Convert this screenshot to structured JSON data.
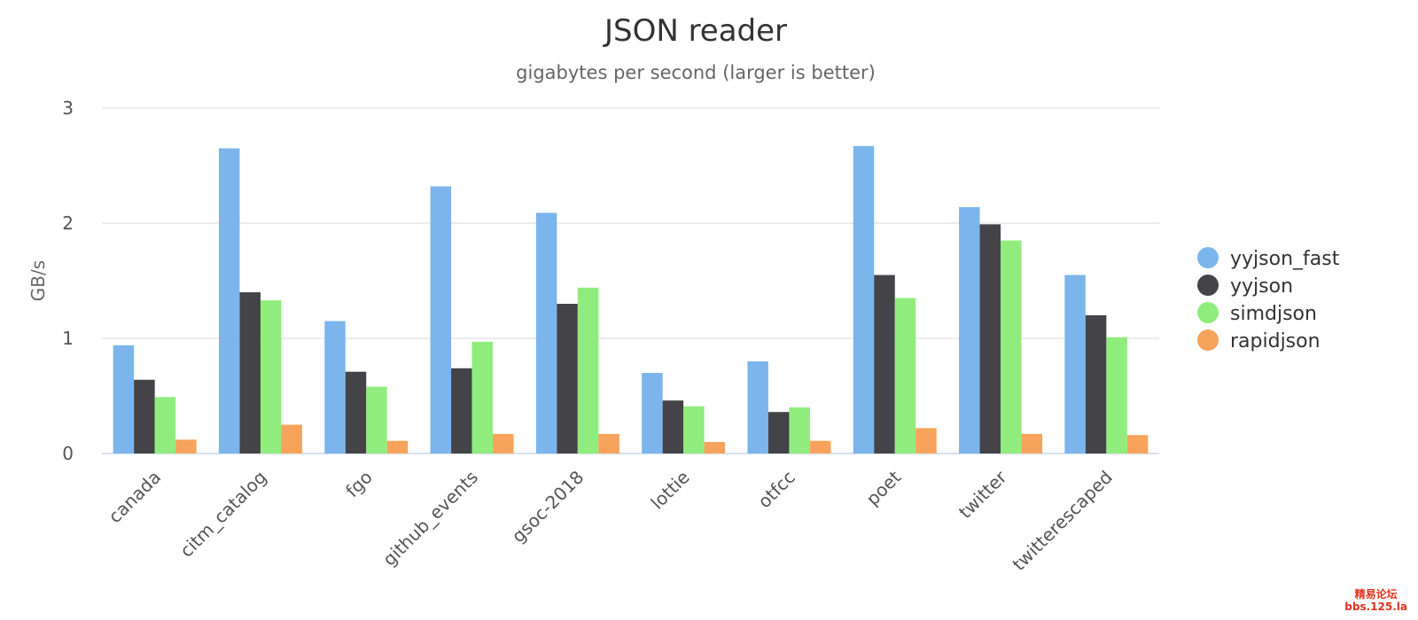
{
  "chart_data": {
    "type": "bar",
    "title": "JSON reader",
    "subtitle": "gigabytes per second (larger is better)",
    "ylabel": "GB/s",
    "xlabel": "",
    "ylim": [
      0,
      3
    ],
    "yticks": [
      0,
      1,
      2,
      3
    ],
    "grid": true,
    "legend_position": "right",
    "categories": [
      "canada",
      "citm_catalog",
      "fgo",
      "github_events",
      "gsoc-2018",
      "lottie",
      "otfcc",
      "poet",
      "twitter",
      "twitterescaped"
    ],
    "series": [
      {
        "name": "yyjson_fast",
        "color": "#7cb5ec",
        "values": [
          0.94,
          2.65,
          1.15,
          2.32,
          2.09,
          0.7,
          0.8,
          2.67,
          2.14,
          1.55
        ]
      },
      {
        "name": "yyjson",
        "color": "#434348",
        "values": [
          0.64,
          1.4,
          0.71,
          0.74,
          1.3,
          0.46,
          0.36,
          1.55,
          1.99,
          1.2
        ]
      },
      {
        "name": "simdjson",
        "color": "#90ed7d",
        "values": [
          0.49,
          1.33,
          0.58,
          0.97,
          1.44,
          0.41,
          0.4,
          1.35,
          1.85,
          1.01
        ]
      },
      {
        "name": "rapidjson",
        "color": "#f7a35c",
        "values": [
          0.12,
          0.25,
          0.11,
          0.17,
          0.17,
          0.1,
          0.11,
          0.22,
          0.17,
          0.16
        ]
      }
    ]
  },
  "watermark": {
    "line1": "精易论坛",
    "line2": "bbs.125.la"
  }
}
